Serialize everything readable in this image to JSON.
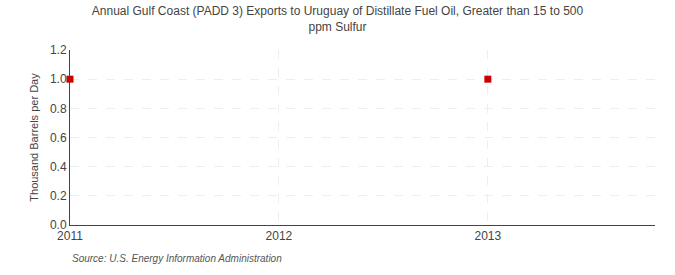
{
  "chart_data": {
    "type": "scatter",
    "title": "Annual Gulf Coast (PADD 3) Exports to Uruguay of Distillate Fuel Oil, Greater than 15 to 500\nppm Sulfur",
    "ylabel": "Thousand Barrels per Day",
    "annotations": [
      "Source: U.S. Energy Information Administration"
    ],
    "x": [
      2011,
      2013
    ],
    "values": [
      1.0,
      1.0
    ],
    "color": "#cc0000",
    "marker": "square",
    "xlim": [
      2011.0,
      2013.8
    ],
    "ylim": [
      0.0,
      1.2
    ],
    "xticks": [
      2011,
      2012,
      2013
    ],
    "yticks": [
      {
        "value": 0.0,
        "label": "0.0"
      },
      0.2,
      0.4,
      0.6,
      0.8,
      {
        "value": 1.0,
        "label": "1.0"
      },
      1.2
    ],
    "grid": true
  }
}
